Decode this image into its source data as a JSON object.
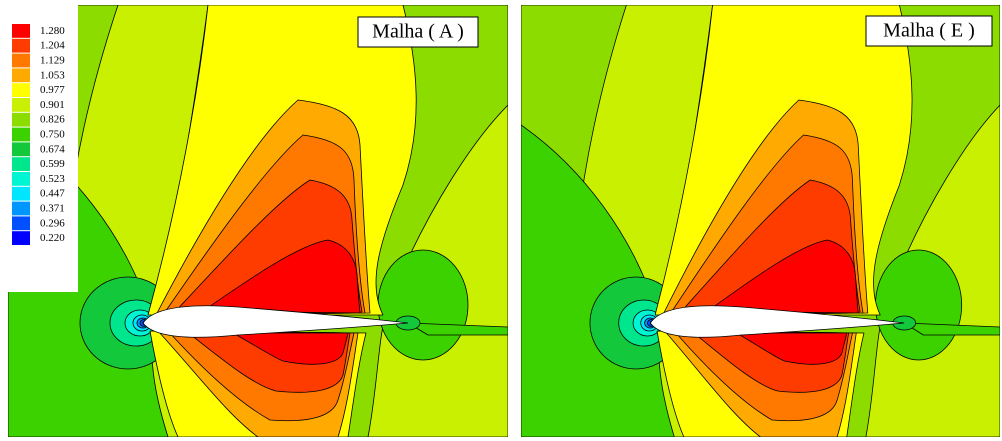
{
  "panels": [
    {
      "label": "Malha ( A )"
    },
    {
      "label": "Malha ( E )"
    }
  ],
  "legend": {
    "levels": [
      {
        "label": "1.280",
        "color": "#ff0000"
      },
      {
        "label": "1.204",
        "color": "#ff3c00"
      },
      {
        "label": "1.129",
        "color": "#ff7800"
      },
      {
        "label": "1.053",
        "color": "#ffaa00"
      },
      {
        "label": "0.977",
        "color": "#ffff00"
      },
      {
        "label": "0.901",
        "color": "#c8f000"
      },
      {
        "label": "0.826",
        "color": "#8cdc00"
      },
      {
        "label": "0.750",
        "color": "#3cd200"
      },
      {
        "label": "0.674",
        "color": "#14c83c"
      },
      {
        "label": "0.599",
        "color": "#00e68c"
      },
      {
        "label": "0.523",
        "color": "#00f5d2"
      },
      {
        "label": "0.447",
        "color": "#00e6ff"
      },
      {
        "label": "0.371",
        "color": "#0096ff"
      },
      {
        "label": "0.296",
        "color": "#0050ff"
      },
      {
        "label": "0.220",
        "color": "#0000ff"
      }
    ]
  }
}
